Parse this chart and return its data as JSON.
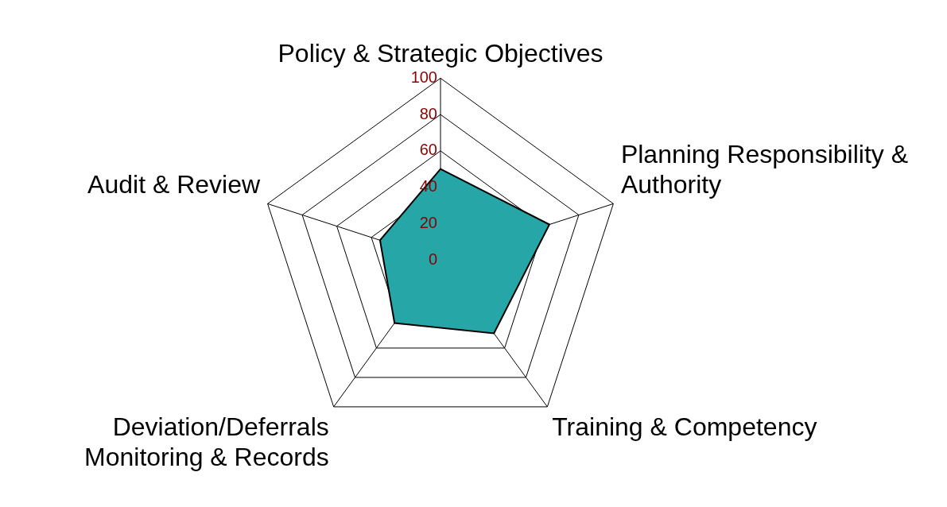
{
  "chart_data": {
    "type": "radar",
    "categories": [
      "Policy & Strategic Objectives",
      "Planning Responsibility & Authority",
      "Training & Competency",
      "Deviation/Deferrals Monitoring & Records",
      "Audit & Review"
    ],
    "series": [
      {
        "type": "radar",
        "color": "#26a6a6",
        "values": [
          50,
          63,
          50,
          43,
          35
        ]
      }
    ],
    "ylim": [
      0,
      100
    ],
    "yticks": [
      0,
      20,
      40,
      60,
      80,
      100
    ],
    "grid": true,
    "legend": false,
    "marker": "none"
  }
}
